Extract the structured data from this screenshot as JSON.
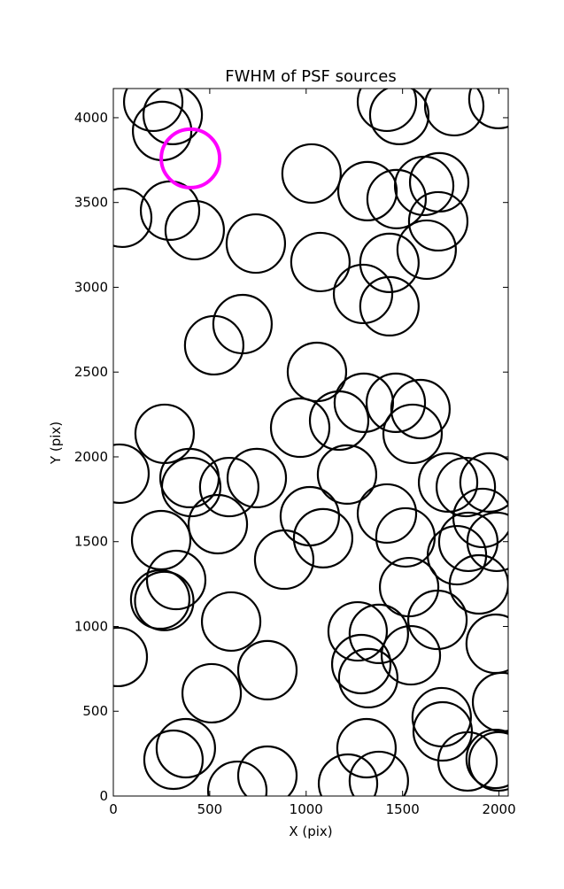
{
  "chart_data": {
    "type": "scatter",
    "title": "FWHM of PSF sources",
    "x_label": "X (pix)",
    "y_label": "Y (pix)",
    "xlim": [
      0,
      2048
    ],
    "ylim": [
      0,
      4172
    ],
    "xticks": [
      0,
      500,
      1000,
      1500,
      2000
    ],
    "yticks": [
      0,
      500,
      1000,
      1500,
      2000,
      2500,
      3000,
      3500,
      4000
    ],
    "series": [
      {
        "color": "#000000",
        "x": [
          207,
          308,
          253,
          46,
          294,
          422,
          739,
          1028,
          1318,
          1419,
          1483,
          1768,
          1997,
          1469,
          1612,
          1690,
          1685,
          1625,
          1432,
          1074,
          1295,
          1432,
          670,
          523,
          1056,
          969,
          1171,
          1299,
          1465,
          1593,
          1552,
          266,
          32,
          395,
          404,
          601,
          744,
          1212,
          1019,
          1088,
          1419,
          1515,
          542,
          248,
          886,
          326,
          243,
          264,
          1534,
          1736,
          1828,
          1951,
          1915,
          1841,
          1782,
          1988,
          1896,
          1681,
          611,
          23,
          1267,
          1377,
          1543,
          1286,
          1322,
          799,
          1983,
          510,
          2016,
          1703,
          1708,
          1837,
          1983,
          1997,
          376,
          312,
          799,
          643,
          1313,
          1217,
          1377
        ],
        "values": [
          4094,
          4016,
          3922,
          3410,
          3452,
          3337,
          3258,
          3671,
          3567,
          4094,
          4016,
          4068,
          4110,
          3520,
          3598,
          3619,
          3389,
          3222,
          3144,
          3149,
          2961,
          2888,
          2783,
          2658,
          2501,
          2172,
          2214,
          2319,
          2319,
          2282,
          2136,
          2136,
          1901,
          1875,
          1822,
          1822,
          1875,
          1896,
          1650,
          1520,
          1666,
          1525,
          1603,
          1509,
          1394,
          1274,
          1159,
          1150,
          1232,
          1849,
          1822,
          1849,
          1640,
          1499,
          1420,
          1499,
          1248,
          1039,
          1029,
          820,
          971,
          956,
          830,
          778,
          695,
          742,
          898,
          606,
          554,
          465,
          381,
          204,
          219,
          204,
          282,
          214,
          120,
          31,
          282,
          73,
          89
        ]
      },
      {
        "color": "#ff00ff",
        "x": [
          400
        ],
        "values": [
          3760
        ]
      }
    ]
  }
}
